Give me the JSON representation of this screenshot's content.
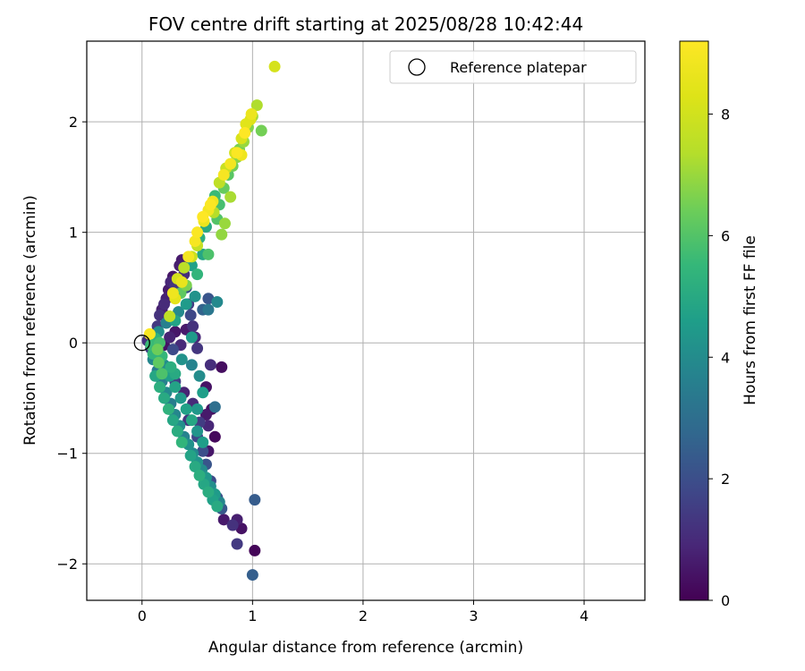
{
  "chart_data": {
    "type": "scatter",
    "title": "FOV centre drift starting at 2025/08/28 10:42:44",
    "xlabel": "Angular distance from reference (arcmin)",
    "ylabel": "Rotation from reference (arcmin)",
    "xlim": [
      -0.5,
      4.55
    ],
    "ylim": [
      -2.33,
      2.73
    ],
    "x_ticks": [
      0,
      1,
      2,
      3,
      4
    ],
    "y_ticks": [
      -2,
      -1,
      0,
      1,
      2
    ],
    "grid": true,
    "legend": {
      "placement": "top-right",
      "entries": [
        "Reference platepar"
      ]
    },
    "reference_point": {
      "x": 0,
      "y": 0
    },
    "colorbar": {
      "label": "Hours from first FF file",
      "colormap": "viridis",
      "range": [
        0,
        9.2
      ],
      "ticks": [
        0,
        2,
        4,
        6,
        8
      ]
    },
    "series": [
      {
        "points": [
          {
            "x": 0.05,
            "y": 0.02,
            "c": 1.2
          },
          {
            "x": 0.08,
            "y": -0.05,
            "c": 1.6
          },
          {
            "x": 0.1,
            "y": 0.05,
            "c": 1.1
          },
          {
            "x": 0.12,
            "y": -0.08,
            "c": 0.9
          },
          {
            "x": 0.14,
            "y": 0.15,
            "c": 1.4
          },
          {
            "x": 0.15,
            "y": -0.12,
            "c": 0.8
          },
          {
            "x": 0.16,
            "y": 0.25,
            "c": 1.2
          },
          {
            "x": 0.18,
            "y": 0.3,
            "c": 0.7
          },
          {
            "x": 0.2,
            "y": 0.35,
            "c": 1.0
          },
          {
            "x": 0.22,
            "y": 0.4,
            "c": 0.8
          },
          {
            "x": 0.24,
            "y": 0.48,
            "c": 0.6
          },
          {
            "x": 0.26,
            "y": 0.55,
            "c": 0.9
          },
          {
            "x": 0.28,
            "y": 0.6,
            "c": 0.5
          },
          {
            "x": 0.3,
            "y": 0.52,
            "c": 1.3
          },
          {
            "x": 0.32,
            "y": 0.45,
            "c": 1.7
          },
          {
            "x": 0.34,
            "y": 0.7,
            "c": 0.7
          },
          {
            "x": 0.36,
            "y": 0.75,
            "c": 0.6
          },
          {
            "x": 0.38,
            "y": 0.62,
            "c": 1.1
          },
          {
            "x": 0.4,
            "y": 0.5,
            "c": 2.1
          },
          {
            "x": 0.42,
            "y": 0.35,
            "c": 1.5
          },
          {
            "x": 0.44,
            "y": 0.25,
            "c": 1.8
          },
          {
            "x": 0.46,
            "y": 0.15,
            "c": 1.2
          },
          {
            "x": 0.48,
            "y": 0.05,
            "c": 0.9
          },
          {
            "x": 0.5,
            "y": -0.05,
            "c": 1.3
          },
          {
            "x": 0.3,
            "y": 0.1,
            "c": 0.5
          },
          {
            "x": 0.25,
            "y": 0.05,
            "c": 0.8
          },
          {
            "x": 0.35,
            "y": -0.02,
            "c": 1.0
          },
          {
            "x": 0.4,
            "y": 0.12,
            "c": 0.6
          },
          {
            "x": 0.2,
            "y": -0.02,
            "c": 0.4
          },
          {
            "x": 0.28,
            "y": -0.06,
            "c": 1.9
          },
          {
            "x": 0.55,
            "y": 0.3,
            "c": 2.6
          },
          {
            "x": 0.6,
            "y": 0.4,
            "c": 2.2
          },
          {
            "x": 0.62,
            "y": -0.2,
            "c": 1.1
          },
          {
            "x": 0.58,
            "y": -0.4,
            "c": 0.4
          },
          {
            "x": 0.63,
            "y": -0.6,
            "c": 0.3
          },
          {
            "x": 0.66,
            "y": -0.85,
            "c": 0.2
          },
          {
            "x": 0.72,
            "y": -0.22,
            "c": 0.3
          },
          {
            "x": 0.6,
            "y": -0.98,
            "c": 0.5
          },
          {
            "x": 0.74,
            "y": -1.6,
            "c": 0.6
          },
          {
            "x": 0.82,
            "y": -1.65,
            "c": 1.2
          },
          {
            "x": 0.86,
            "y": -1.6,
            "c": 0.7
          },
          {
            "x": 0.9,
            "y": -1.68,
            "c": 0.4
          },
          {
            "x": 0.86,
            "y": -1.82,
            "c": 1.4
          },
          {
            "x": 1.02,
            "y": -1.88,
            "c": 0.1
          },
          {
            "x": 1.0,
            "y": -2.1,
            "c": 2.5
          },
          {
            "x": 1.02,
            "y": -1.42,
            "c": 2.4
          },
          {
            "x": 0.52,
            "y": -0.72,
            "c": 1.5
          },
          {
            "x": 0.46,
            "y": -0.55,
            "c": 1.0
          },
          {
            "x": 0.38,
            "y": -0.45,
            "c": 0.8
          },
          {
            "x": 0.3,
            "y": -0.35,
            "c": 1.6
          },
          {
            "x": 0.24,
            "y": -0.28,
            "c": 1.0
          },
          {
            "x": 0.18,
            "y": -0.2,
            "c": 1.2
          },
          {
            "x": 0.42,
            "y": -0.7,
            "c": 1.3
          },
          {
            "x": 0.5,
            "y": -0.85,
            "c": 1.8
          },
          {
            "x": 0.55,
            "y": -0.98,
            "c": 2.0
          },
          {
            "x": 0.58,
            "y": -1.1,
            "c": 2.2
          },
          {
            "x": 0.62,
            "y": -1.25,
            "c": 1.9
          },
          {
            "x": 0.68,
            "y": -1.4,
            "c": 2.0
          },
          {
            "x": 0.72,
            "y": -1.5,
            "c": 2.3
          },
          {
            "x": 0.66,
            "y": -0.58,
            "c": 3.0
          },
          {
            "x": 0.58,
            "y": -0.65,
            "c": 0.6
          },
          {
            "x": 0.6,
            "y": -0.75,
            "c": 0.9
          },
          {
            "x": 0.1,
            "y": -0.15,
            "c": 3.8
          },
          {
            "x": 0.14,
            "y": -0.25,
            "c": 3.4
          },
          {
            "x": 0.18,
            "y": -0.35,
            "c": 3.6
          },
          {
            "x": 0.22,
            "y": -0.45,
            "c": 3.9
          },
          {
            "x": 0.26,
            "y": -0.55,
            "c": 3.5
          },
          {
            "x": 0.3,
            "y": -0.65,
            "c": 3.8
          },
          {
            "x": 0.34,
            "y": -0.75,
            "c": 4.1
          },
          {
            "x": 0.38,
            "y": -0.85,
            "c": 3.7
          },
          {
            "x": 0.42,
            "y": -0.92,
            "c": 4.2
          },
          {
            "x": 0.46,
            "y": -1.0,
            "c": 3.9
          },
          {
            "x": 0.5,
            "y": -1.08,
            "c": 4.3
          },
          {
            "x": 0.54,
            "y": -1.15,
            "c": 4.0
          },
          {
            "x": 0.58,
            "y": -1.22,
            "c": 4.4
          },
          {
            "x": 0.62,
            "y": -1.3,
            "c": 4.1
          },
          {
            "x": 0.66,
            "y": -1.37,
            "c": 4.5
          },
          {
            "x": 0.7,
            "y": -1.44,
            "c": 3.8
          },
          {
            "x": 0.2,
            "y": -0.2,
            "c": 4.0
          },
          {
            "x": 0.25,
            "y": -0.3,
            "c": 4.6
          },
          {
            "x": 0.3,
            "y": -0.4,
            "c": 4.8
          },
          {
            "x": 0.35,
            "y": -0.5,
            "c": 4.4
          },
          {
            "x": 0.4,
            "y": -0.6,
            "c": 4.7
          },
          {
            "x": 0.45,
            "y": -0.7,
            "c": 4.9
          },
          {
            "x": 0.5,
            "y": -0.8,
            "c": 4.3
          },
          {
            "x": 0.55,
            "y": -0.9,
            "c": 4.6
          },
          {
            "x": 0.15,
            "y": 0.1,
            "c": 4.1
          },
          {
            "x": 0.22,
            "y": 0.18,
            "c": 3.6
          },
          {
            "x": 0.33,
            "y": 0.28,
            "c": 3.9
          },
          {
            "x": 0.48,
            "y": 0.42,
            "c": 4.2
          },
          {
            "x": 0.68,
            "y": 0.37,
            "c": 3.9
          },
          {
            "x": 0.6,
            "y": 0.3,
            "c": 3.3
          },
          {
            "x": 0.4,
            "y": 0.35,
            "c": 4.5
          },
          {
            "x": 0.3,
            "y": 0.2,
            "c": 4.8
          },
          {
            "x": 0.36,
            "y": -0.15,
            "c": 4.2
          },
          {
            "x": 0.45,
            "y": -0.2,
            "c": 3.7
          },
          {
            "x": 0.52,
            "y": -0.3,
            "c": 4.0
          },
          {
            "x": 0.12,
            "y": -0.3,
            "c": 4.9
          },
          {
            "x": 0.16,
            "y": -0.4,
            "c": 5.2
          },
          {
            "x": 0.2,
            "y": -0.5,
            "c": 5.0
          },
          {
            "x": 0.24,
            "y": -0.6,
            "c": 5.3
          },
          {
            "x": 0.28,
            "y": -0.7,
            "c": 4.9
          },
          {
            "x": 0.32,
            "y": -0.8,
            "c": 5.1
          },
          {
            "x": 0.36,
            "y": -0.9,
            "c": 5.4
          },
          {
            "x": 0.44,
            "y": -1.02,
            "c": 4.8
          },
          {
            "x": 0.48,
            "y": -1.12,
            "c": 5.0
          },
          {
            "x": 0.52,
            "y": -1.2,
            "c": 5.2
          },
          {
            "x": 0.56,
            "y": -1.28,
            "c": 4.9
          },
          {
            "x": 0.6,
            "y": -1.35,
            "c": 5.1
          },
          {
            "x": 0.64,
            "y": -1.42,
            "c": 4.7
          },
          {
            "x": 0.68,
            "y": -1.48,
            "c": 5.0
          },
          {
            "x": 0.1,
            "y": -0.1,
            "c": 5.4
          },
          {
            "x": 0.08,
            "y": -0.02,
            "c": 5.6
          },
          {
            "x": 0.12,
            "y": 0.04,
            "c": 5.3
          },
          {
            "x": 0.18,
            "y": -0.12,
            "c": 5.5
          },
          {
            "x": 0.26,
            "y": -0.22,
            "c": 5.2
          },
          {
            "x": 0.3,
            "y": -0.28,
            "c": 5.0
          },
          {
            "x": 0.55,
            "y": -0.45,
            "c": 4.6
          },
          {
            "x": 0.5,
            "y": -0.6,
            "c": 4.4
          },
          {
            "x": 0.45,
            "y": 0.05,
            "c": 4.5
          },
          {
            "x": 0.55,
            "y": 0.8,
            "c": 4.9
          },
          {
            "x": 0.52,
            "y": 0.95,
            "c": 5.2
          },
          {
            "x": 0.58,
            "y": 1.05,
            "c": 5.0
          },
          {
            "x": 0.62,
            "y": 1.2,
            "c": 5.3
          },
          {
            "x": 0.66,
            "y": 1.33,
            "c": 5.6
          },
          {
            "x": 0.7,
            "y": 1.25,
            "c": 5.8
          },
          {
            "x": 0.45,
            "y": 0.7,
            "c": 4.7
          },
          {
            "x": 0.5,
            "y": 0.62,
            "c": 5.4
          },
          {
            "x": 0.68,
            "y": 1.12,
            "c": 6.0
          },
          {
            "x": 0.74,
            "y": 1.4,
            "c": 6.3
          },
          {
            "x": 0.78,
            "y": 1.52,
            "c": 6.1
          },
          {
            "x": 0.82,
            "y": 1.6,
            "c": 6.5
          },
          {
            "x": 0.86,
            "y": 1.68,
            "c": 6.8
          },
          {
            "x": 0.88,
            "y": 1.75,
            "c": 6.6
          },
          {
            "x": 0.92,
            "y": 1.82,
            "c": 7.0
          },
          {
            "x": 0.96,
            "y": 1.95,
            "c": 6.7
          },
          {
            "x": 1.0,
            "y": 2.05,
            "c": 7.1
          },
          {
            "x": 1.04,
            "y": 2.15,
            "c": 7.3
          },
          {
            "x": 1.08,
            "y": 1.92,
            "c": 6.5
          },
          {
            "x": 0.8,
            "y": 1.32,
            "c": 7.2
          },
          {
            "x": 0.75,
            "y": 1.08,
            "c": 7.0
          },
          {
            "x": 0.72,
            "y": 0.98,
            "c": 6.9
          },
          {
            "x": 0.6,
            "y": 0.8,
            "c": 5.9
          },
          {
            "x": 0.4,
            "y": 0.52,
            "c": 6.6
          },
          {
            "x": 0.35,
            "y": 0.45,
            "c": 6.2
          },
          {
            "x": 0.65,
            "y": 1.18,
            "c": 7.4
          },
          {
            "x": 0.7,
            "y": 1.45,
            "c": 7.6
          },
          {
            "x": 0.76,
            "y": 1.58,
            "c": 7.8
          },
          {
            "x": 0.84,
            "y": 1.72,
            "c": 8.0
          },
          {
            "x": 0.9,
            "y": 1.85,
            "c": 8.2
          },
          {
            "x": 0.94,
            "y": 1.98,
            "c": 8.4
          },
          {
            "x": 0.98,
            "y": 2.02,
            "c": 8.3
          },
          {
            "x": 1.2,
            "y": 2.5,
            "c": 8.1
          },
          {
            "x": 0.5,
            "y": 0.88,
            "c": 7.7
          },
          {
            "x": 0.45,
            "y": 0.78,
            "c": 7.9
          },
          {
            "x": 0.38,
            "y": 0.68,
            "c": 7.5
          },
          {
            "x": 0.32,
            "y": 0.58,
            "c": 8.1
          },
          {
            "x": 0.25,
            "y": 0.24,
            "c": 7.6
          },
          {
            "x": 0.3,
            "y": 0.4,
            "c": 8.5
          },
          {
            "x": 0.28,
            "y": 0.45,
            "c": 8.8
          },
          {
            "x": 0.36,
            "y": 0.55,
            "c": 8.6
          },
          {
            "x": 0.42,
            "y": 0.78,
            "c": 8.9
          },
          {
            "x": 0.48,
            "y": 0.92,
            "c": 9.0
          },
          {
            "x": 0.5,
            "y": 1.0,
            "c": 9.1
          },
          {
            "x": 0.56,
            "y": 1.1,
            "c": 8.7
          },
          {
            "x": 0.55,
            "y": 1.14,
            "c": 9.2
          },
          {
            "x": 0.6,
            "y": 1.2,
            "c": 8.9
          },
          {
            "x": 0.62,
            "y": 1.25,
            "c": 9.1
          },
          {
            "x": 0.64,
            "y": 1.28,
            "c": 8.8
          },
          {
            "x": 0.74,
            "y": 1.52,
            "c": 9.0
          },
          {
            "x": 0.8,
            "y": 1.62,
            "c": 8.9
          },
          {
            "x": 0.86,
            "y": 1.72,
            "c": 9.1
          },
          {
            "x": 0.9,
            "y": 1.7,
            "c": 8.8
          },
          {
            "x": 0.93,
            "y": 1.9,
            "c": 9.2
          },
          {
            "x": 0.99,
            "y": 2.07,
            "c": 8.7
          },
          {
            "x": 0.07,
            "y": 0.08,
            "c": 9.1
          },
          {
            "x": 0.15,
            "y": -0.18,
            "c": 6.2
          },
          {
            "x": 0.18,
            "y": -0.28,
            "c": 5.9
          },
          {
            "x": 0.14,
            "y": -0.06,
            "c": 6.4
          },
          {
            "x": 0.16,
            "y": 0.0,
            "c": 5.8
          }
        ]
      }
    ]
  }
}
